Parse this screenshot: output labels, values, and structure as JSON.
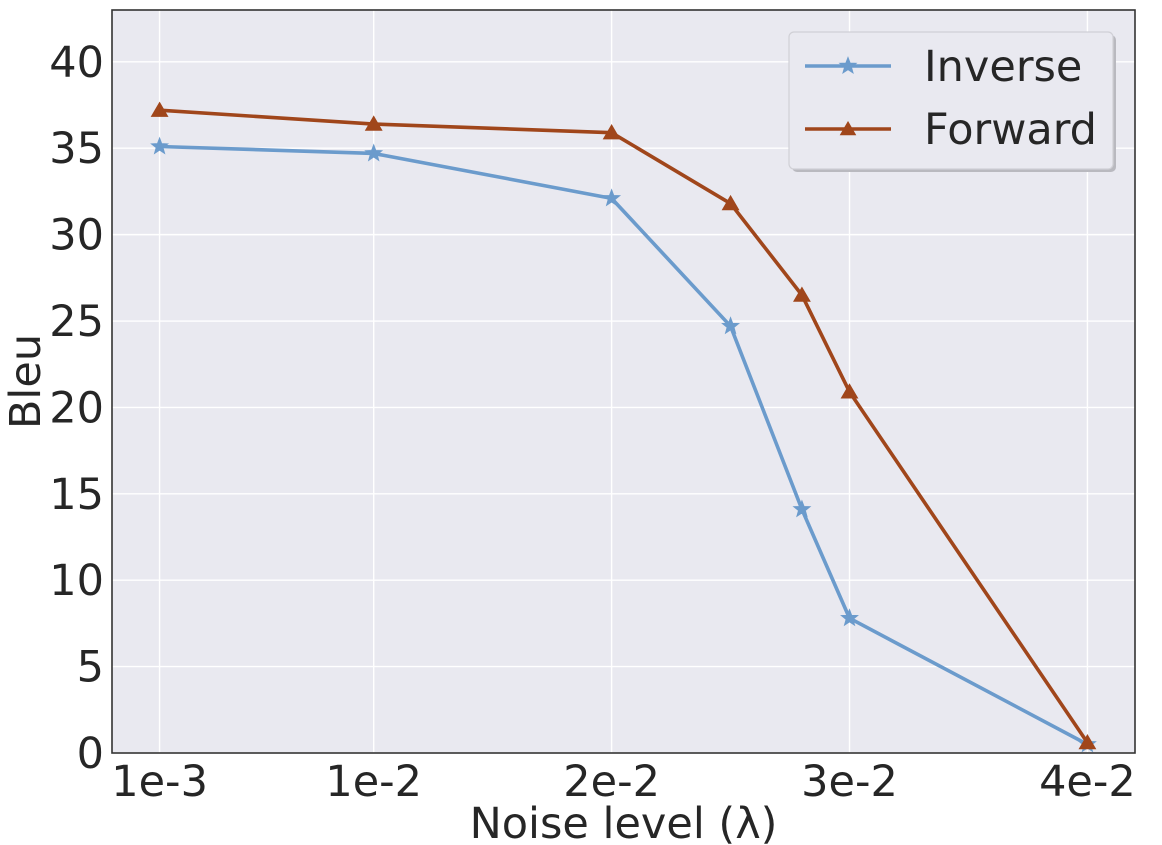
{
  "chart_data": {
    "type": "line",
    "xlabel": "Noise level (λ)",
    "ylabel": "Bleu",
    "x_tick_labels": [
      "1e-3",
      "1e-2",
      "2e-2",
      "3e-2",
      "4e-2"
    ],
    "x_tick_values": [
      0.001,
      0.01,
      0.02,
      0.03,
      0.04
    ],
    "x": [
      0.001,
      0.01,
      0.02,
      0.025,
      0.028,
      0.03,
      0.04
    ],
    "xlim": [
      -0.001,
      0.042
    ],
    "yticks": [
      0,
      5,
      10,
      15,
      20,
      25,
      30,
      35,
      40
    ],
    "ylim": [
      0,
      43
    ],
    "grid": true,
    "legend_position": "top-right",
    "background": "#e9e9f0",
    "series": [
      {
        "name": "Inverse",
        "color": "#6b9bcc",
        "marker": "star",
        "values": [
          35.1,
          34.7,
          32.1,
          24.7,
          14.1,
          7.8,
          0.5
        ]
      },
      {
        "name": "Forward",
        "color": "#a0461b",
        "marker": "triangle",
        "values": [
          37.2,
          36.4,
          35.9,
          31.8,
          26.5,
          20.9,
          0.6
        ]
      }
    ]
  }
}
